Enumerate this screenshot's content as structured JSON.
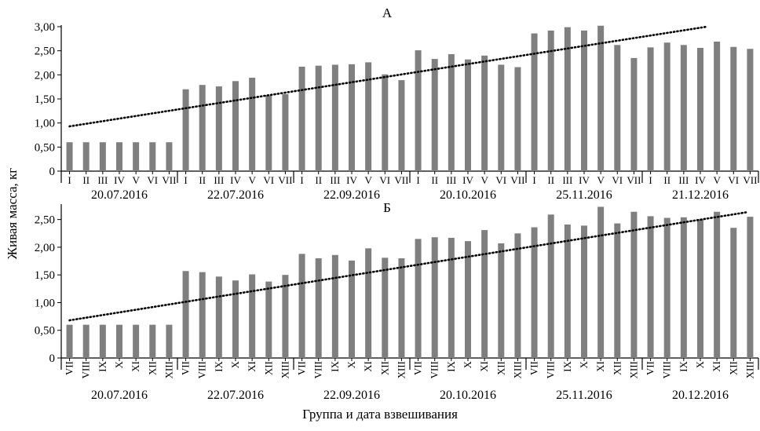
{
  "ylabel": "Живая масса, кг",
  "xlabel": "Группа и дата взвешивания",
  "colors": {
    "bar": "#7f7f7f",
    "trend": "#000000",
    "axis": "#000000"
  },
  "chart_data": [
    {
      "type": "bar",
      "title": "А",
      "ylim": [
        0,
        3
      ],
      "yticks": [
        "0",
        "0,50",
        "1,00",
        "1,50",
        "2,00",
        "2,50",
        "3,00"
      ],
      "grid": false,
      "trendline": {
        "style": "dotted",
        "from": 0.93,
        "to": 3.0
      },
      "groups": [
        {
          "date": "20.07.2016",
          "categories": [
            "I",
            "II",
            "III",
            "IV",
            "V",
            "VI",
            "VII"
          ],
          "values": [
            0.6,
            0.6,
            0.6,
            0.6,
            0.6,
            0.6,
            0.6
          ]
        },
        {
          "date": "22.07.2016",
          "categories": [
            "I",
            "II",
            "III",
            "IV",
            "V",
            "VI",
            "VII"
          ],
          "values": [
            1.7,
            1.79,
            1.76,
            1.87,
            1.94,
            1.57,
            1.6
          ]
        },
        {
          "date": "22.09.2016",
          "categories": [
            "I",
            "II",
            "III",
            "IV",
            "V",
            "VI",
            "VII"
          ],
          "values": [
            2.17,
            2.19,
            2.21,
            2.22,
            2.26,
            2.01,
            1.89
          ]
        },
        {
          "date": "20.10.2016",
          "categories": [
            "I",
            "II",
            "III",
            "IV",
            "V",
            "VI",
            "VII"
          ],
          "values": [
            2.51,
            2.33,
            2.43,
            2.32,
            2.4,
            2.21,
            2.16
          ]
        },
        {
          "date": "25.11.2016",
          "categories": [
            "I",
            "II",
            "III",
            "IV",
            "V",
            "VI",
            "VII"
          ],
          "values": [
            2.86,
            2.92,
            2.99,
            2.92,
            3.02,
            2.62,
            2.35
          ]
        },
        {
          "date": "21.12.2016",
          "categories": [
            "I",
            "II",
            "III",
            "IV",
            "V",
            "VI",
            "VII"
          ],
          "values": [
            2.57,
            2.67,
            2.62,
            2.56,
            2.69,
            2.58,
            2.54
          ]
        }
      ]
    },
    {
      "type": "bar",
      "title": "Б",
      "ylim": [
        0,
        2.75
      ],
      "yticks": [
        "0",
        "0,50",
        "1,00",
        "1,50",
        "2,00",
        "2,50"
      ],
      "grid": false,
      "trendline": {
        "style": "dotted",
        "from": 0.68,
        "to": 2.63
      },
      "groups": [
        {
          "date": "20.07.2016",
          "categories": [
            "VII",
            "VIII",
            "IX",
            "X",
            "XI",
            "XII",
            "XIII"
          ],
          "values": [
            0.6,
            0.6,
            0.6,
            0.6,
            0.6,
            0.6,
            0.6
          ]
        },
        {
          "date": "22.07.2016",
          "categories": [
            "VII",
            "VIII",
            "IX",
            "X",
            "XI",
            "XII",
            "XIII"
          ],
          "values": [
            1.57,
            1.55,
            1.47,
            1.4,
            1.51,
            1.38,
            1.5
          ]
        },
        {
          "date": "22.09.2016",
          "categories": [
            "VII",
            "VIII",
            "IX",
            "X",
            "XI",
            "XII",
            "XIII"
          ],
          "values": [
            1.88,
            1.8,
            1.86,
            1.76,
            1.98,
            1.81,
            1.8
          ]
        },
        {
          "date": "20.10.2016",
          "categories": [
            "VII",
            "VIII",
            "IX",
            "X",
            "XI",
            "XII",
            "XIII"
          ],
          "values": [
            2.15,
            2.18,
            2.17,
            2.11,
            2.31,
            2.07,
            2.25
          ]
        },
        {
          "date": "25.11.2016",
          "categories": [
            "VII",
            "VIII",
            "IX",
            "X",
            "XI",
            "XII",
            "XIII"
          ],
          "values": [
            2.36,
            2.59,
            2.41,
            2.39,
            2.73,
            2.43,
            2.64
          ]
        },
        {
          "date": "20.12.2016",
          "categories": [
            "VII",
            "VIII",
            "IX",
            "X",
            "XI",
            "XII",
            "XIII"
          ],
          "values": [
            2.56,
            2.53,
            2.54,
            2.5,
            2.64,
            2.35,
            2.55
          ]
        }
      ]
    }
  ]
}
